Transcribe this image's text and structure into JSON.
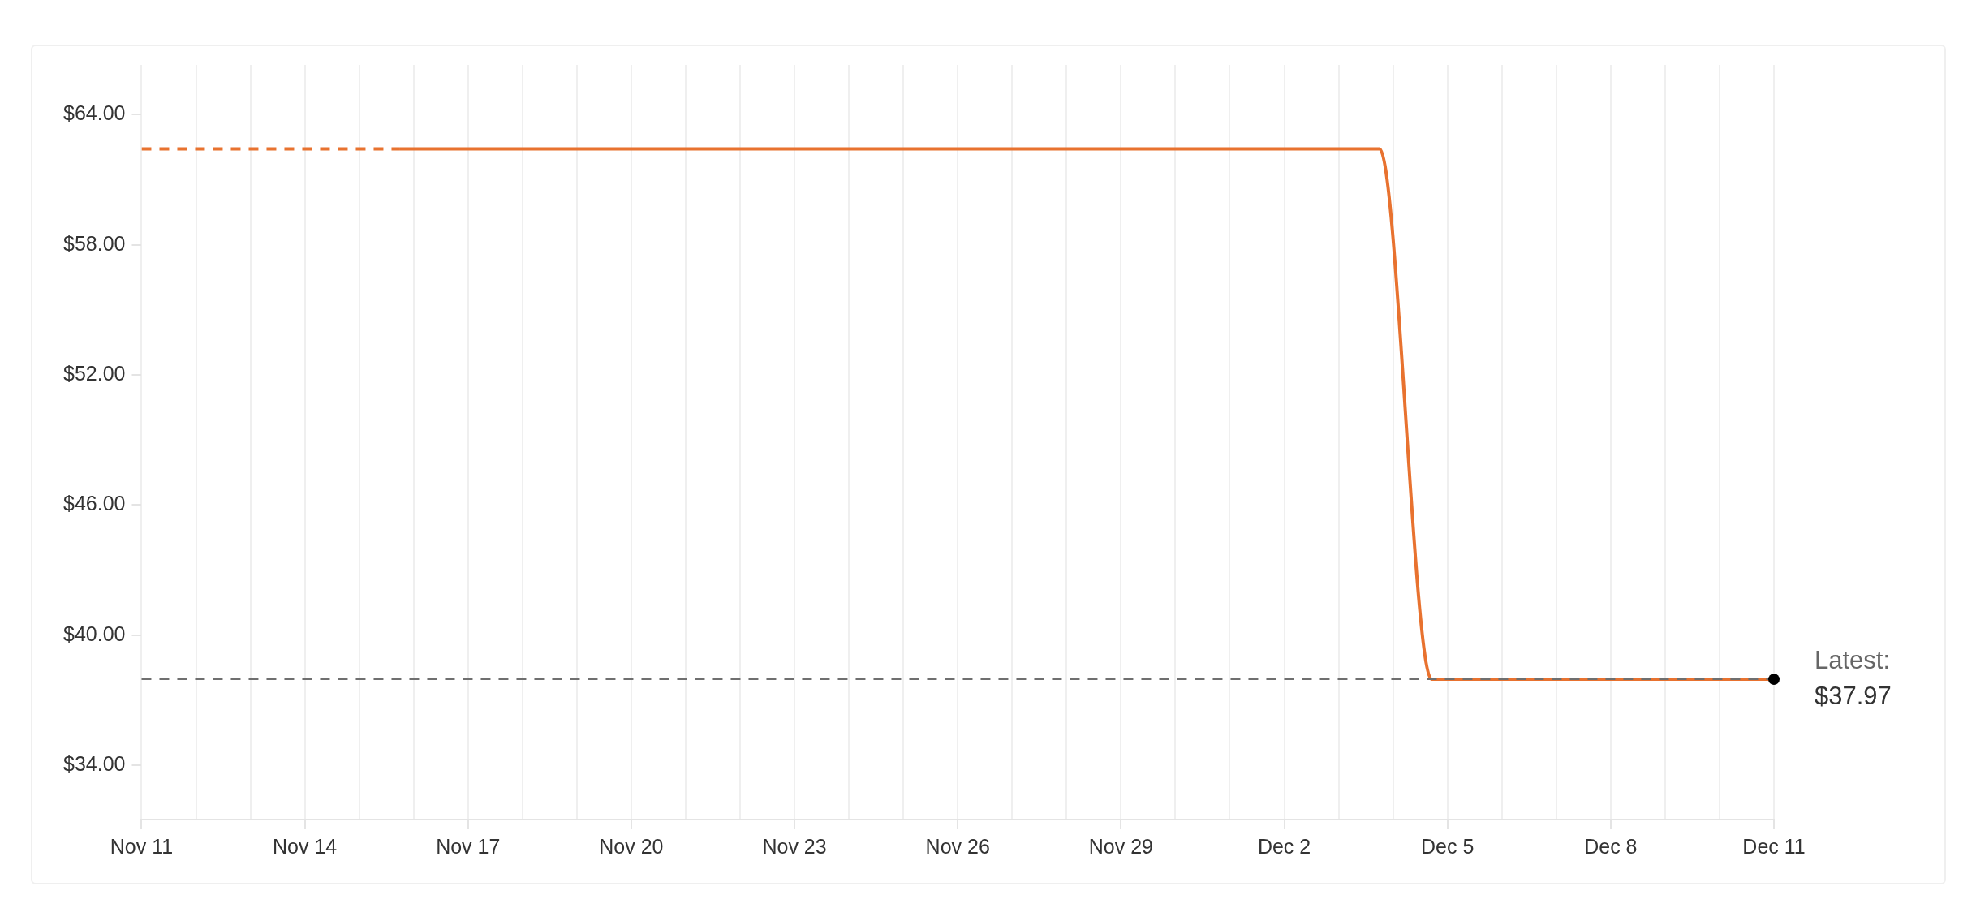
{
  "chart_data": {
    "type": "line",
    "series": [
      {
        "color": "#e8722f",
        "line_style": "dashed",
        "x": [
          "--11-11",
          "--11-15T18:00"
        ],
        "values": [
          62.43,
          62.43
        ]
      },
      {
        "color": "#e8722f",
        "line_style": "solid",
        "x": [
          "--11-15T18:00",
          "--12-03T18:00",
          "--12-04T17:00",
          "--12-11"
        ],
        "values": [
          62.43,
          62.43,
          37.97,
          37.97
        ]
      }
    ],
    "xlim": [
      "--11-11",
      "--12-11"
    ],
    "xticks": [
      {
        "value": "--11-11",
        "label": "Nov 11"
      },
      {
        "value": "--11-12",
        "label": null
      },
      {
        "value": "--11-13",
        "label": null
      },
      {
        "value": "--11-14",
        "label": "Nov 14"
      },
      {
        "value": "--11-15",
        "label": null
      },
      {
        "value": "--11-16",
        "label": null
      },
      {
        "value": "--11-17",
        "label": "Nov 17"
      },
      {
        "value": "--11-18",
        "label": null
      },
      {
        "value": "--11-19",
        "label": null
      },
      {
        "value": "--11-20",
        "label": "Nov 20"
      },
      {
        "value": "--11-21",
        "label": null
      },
      {
        "value": "--11-22",
        "label": null
      },
      {
        "value": "--11-23",
        "label": "Nov 23"
      },
      {
        "value": "--11-24",
        "label": null
      },
      {
        "value": "--11-25",
        "label": null
      },
      {
        "value": "--11-26",
        "label": "Nov 26"
      },
      {
        "value": "--11-27",
        "label": null
      },
      {
        "value": "--11-28",
        "label": null
      },
      {
        "value": "--11-29",
        "label": "Nov 29"
      },
      {
        "value": "--11-30",
        "label": null
      },
      {
        "value": "--12-01",
        "label": null
      },
      {
        "value": "--12-02",
        "label": "Dec 2"
      },
      {
        "value": "--12-03",
        "label": null
      },
      {
        "value": "--12-04",
        "label": null
      },
      {
        "value": "--12-05",
        "label": "Dec 5"
      },
      {
        "value": "--12-06",
        "label": null
      },
      {
        "value": "--12-07",
        "label": null
      },
      {
        "value": "--12-08",
        "label": "Dec 8"
      },
      {
        "value": "--12-09",
        "label": null
      },
      {
        "value": "--12-10",
        "label": null
      },
      {
        "value": "--12-11",
        "label": "Dec 11"
      }
    ],
    "ylim": [
      31.5,
      66.3
    ],
    "yticks": [
      {
        "value": 34,
        "label": "$34.00"
      },
      {
        "value": 40,
        "label": "$40.00"
      },
      {
        "value": 46,
        "label": "$46.00"
      },
      {
        "value": 52,
        "label": "$52.00"
      },
      {
        "value": 58,
        "label": "$58.00"
      },
      {
        "value": 64,
        "label": "$64.00"
      }
    ],
    "grid": "x",
    "legend": false,
    "marker": "none",
    "ref_lines": [
      {
        "axis": "y",
        "value": 37.97,
        "color": "#6f6f6f",
        "line_style": "dashed"
      }
    ],
    "annotations": [
      {
        "text": "Latest:\n$37.97",
        "x": "--12-11",
        "y": 37.97
      }
    ]
  }
}
